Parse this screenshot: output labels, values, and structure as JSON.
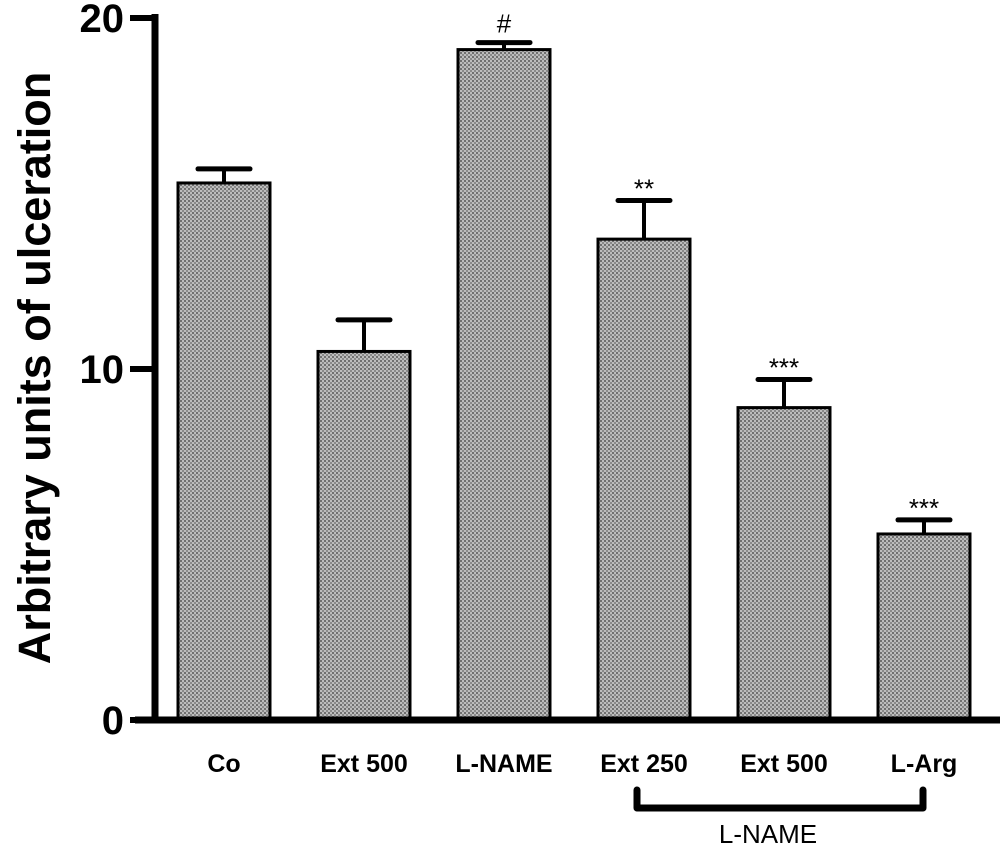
{
  "chart_data": {
    "type": "bar",
    "categories": [
      "Co",
      "Ext 500",
      "L-NAME",
      "Ext 250",
      "Ext 500",
      "L-Arg"
    ],
    "values": [
      15.3,
      10.5,
      19.1,
      13.7,
      8.9,
      5.3
    ],
    "errors": [
      0.4,
      0.9,
      0.2,
      1.1,
      0.8,
      0.4
    ],
    "significance": [
      "",
      "",
      "#",
      "**",
      "***",
      "***"
    ],
    "ylabel": "Arbitrary units of ulceration",
    "xlabel": "",
    "ylim": [
      0,
      20
    ],
    "yticks": [
      "0",
      "10",
      "20"
    ],
    "group_bracket": {
      "label": "L-NAME",
      "from_index": 3,
      "to_index": 5
    },
    "grid": false,
    "legend": "none",
    "bar_fill": "#9a9a9a"
  }
}
